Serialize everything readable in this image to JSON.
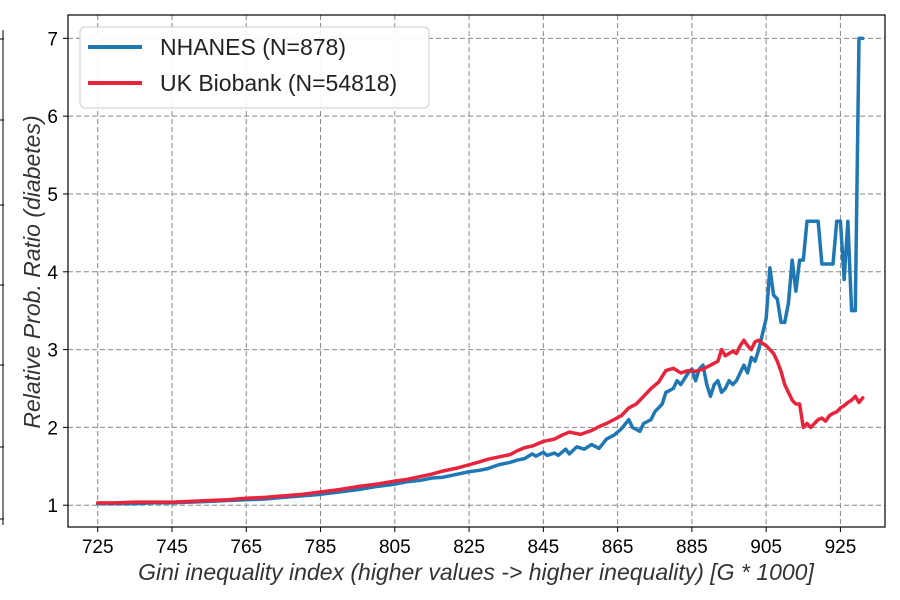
{
  "chart_data": {
    "type": "line",
    "xlabel": "Gini inequality index (higher values -> higher inequality) [G * 1000]",
    "ylabel": "Relative Prob. Ratio (diabetes)",
    "xlim": [
      717,
      937
    ],
    "ylim": [
      0.72,
      7.3
    ],
    "x_ticks": [
      725,
      745,
      765,
      785,
      805,
      825,
      845,
      865,
      885,
      905,
      925
    ],
    "y_ticks": [
      1,
      2,
      3,
      4,
      5,
      6,
      7
    ],
    "grid": true,
    "legend_position": "top-left",
    "series": [
      {
        "name": "NHANES (N=878)",
        "color": "#1f77b4",
        "points": [
          [
            725,
            1.02
          ],
          [
            730,
            1.02
          ],
          [
            735,
            1.02
          ],
          [
            740,
            1.03
          ],
          [
            745,
            1.03
          ],
          [
            750,
            1.04
          ],
          [
            755,
            1.05
          ],
          [
            760,
            1.06
          ],
          [
            765,
            1.07
          ],
          [
            770,
            1.08
          ],
          [
            775,
            1.1
          ],
          [
            780,
            1.12
          ],
          [
            785,
            1.14
          ],
          [
            790,
            1.17
          ],
          [
            795,
            1.2
          ],
          [
            800,
            1.24
          ],
          [
            805,
            1.27
          ],
          [
            808,
            1.3
          ],
          [
            812,
            1.32
          ],
          [
            815,
            1.35
          ],
          [
            818,
            1.36
          ],
          [
            822,
            1.4
          ],
          [
            825,
            1.43
          ],
          [
            828,
            1.45
          ],
          [
            830,
            1.47
          ],
          [
            833,
            1.52
          ],
          [
            836,
            1.55
          ],
          [
            838,
            1.58
          ],
          [
            840,
            1.6
          ],
          [
            842,
            1.66
          ],
          [
            843,
            1.63
          ],
          [
            845,
            1.68
          ],
          [
            846,
            1.64
          ],
          [
            848,
            1.67
          ],
          [
            849,
            1.64
          ],
          [
            851,
            1.72
          ],
          [
            852,
            1.66
          ],
          [
            854,
            1.75
          ],
          [
            856,
            1.72
          ],
          [
            858,
            1.78
          ],
          [
            860,
            1.73
          ],
          [
            862,
            1.85
          ],
          [
            864,
            1.9
          ],
          [
            866,
            1.98
          ],
          [
            868,
            2.1
          ],
          [
            869,
            2.0
          ],
          [
            871,
            1.95
          ],
          [
            872,
            2.05
          ],
          [
            874,
            2.1
          ],
          [
            875,
            2.2
          ],
          [
            877,
            2.3
          ],
          [
            878,
            2.45
          ],
          [
            880,
            2.5
          ],
          [
            881,
            2.6
          ],
          [
            882,
            2.55
          ],
          [
            884,
            2.7
          ],
          [
            885,
            2.75
          ],
          [
            886,
            2.6
          ],
          [
            887,
            2.75
          ],
          [
            888,
            2.8
          ],
          [
            889,
            2.55
          ],
          [
            890,
            2.4
          ],
          [
            891,
            2.55
          ],
          [
            892,
            2.6
          ],
          [
            893,
            2.45
          ],
          [
            894,
            2.5
          ],
          [
            895,
            2.6
          ],
          [
            896,
            2.55
          ],
          [
            897,
            2.6
          ],
          [
            898,
            2.7
          ],
          [
            899,
            2.8
          ],
          [
            900,
            2.7
          ],
          [
            901,
            2.9
          ],
          [
            902,
            2.85
          ],
          [
            903,
            3.0
          ],
          [
            904,
            3.2
          ],
          [
            905,
            3.4
          ],
          [
            906,
            4.05
          ],
          [
            907,
            3.7
          ],
          [
            908,
            3.65
          ],
          [
            909,
            3.35
          ],
          [
            910,
            3.35
          ],
          [
            911,
            3.6
          ],
          [
            912,
            4.15
          ],
          [
            913,
            3.75
          ],
          [
            914,
            4.15
          ],
          [
            915,
            4.15
          ],
          [
            916,
            4.65
          ],
          [
            917,
            4.65
          ],
          [
            918,
            4.65
          ],
          [
            919,
            4.65
          ],
          [
            920,
            4.1
          ],
          [
            921,
            4.1
          ],
          [
            922,
            4.1
          ],
          [
            923,
            4.1
          ],
          [
            924,
            4.65
          ],
          [
            925,
            4.65
          ],
          [
            926,
            3.9
          ],
          [
            927,
            4.65
          ],
          [
            928,
            3.5
          ],
          [
            929,
            3.5
          ],
          [
            930,
            7.0
          ],
          [
            931,
            7.0
          ]
        ]
      },
      {
        "name": "UK Biobank (N=54818)",
        "color": "#e8243d",
        "points": [
          [
            725,
            1.03
          ],
          [
            730,
            1.03
          ],
          [
            735,
            1.04
          ],
          [
            740,
            1.04
          ],
          [
            745,
            1.04
          ],
          [
            750,
            1.05
          ],
          [
            755,
            1.06
          ],
          [
            760,
            1.07
          ],
          [
            765,
            1.09
          ],
          [
            770,
            1.1
          ],
          [
            775,
            1.12
          ],
          [
            780,
            1.14
          ],
          [
            785,
            1.17
          ],
          [
            790,
            1.2
          ],
          [
            795,
            1.24
          ],
          [
            800,
            1.27
          ],
          [
            805,
            1.31
          ],
          [
            808,
            1.33
          ],
          [
            812,
            1.37
          ],
          [
            815,
            1.4
          ],
          [
            818,
            1.44
          ],
          [
            822,
            1.48
          ],
          [
            825,
            1.52
          ],
          [
            828,
            1.56
          ],
          [
            830,
            1.59
          ],
          [
            833,
            1.62
          ],
          [
            836,
            1.65
          ],
          [
            838,
            1.7
          ],
          [
            840,
            1.74
          ],
          [
            842,
            1.76
          ],
          [
            845,
            1.82
          ],
          [
            848,
            1.85
          ],
          [
            850,
            1.9
          ],
          [
            852,
            1.94
          ],
          [
            855,
            1.91
          ],
          [
            858,
            1.96
          ],
          [
            860,
            2.01
          ],
          [
            862,
            2.05
          ],
          [
            864,
            2.1
          ],
          [
            866,
            2.15
          ],
          [
            868,
            2.25
          ],
          [
            870,
            2.3
          ],
          [
            872,
            2.4
          ],
          [
            874,
            2.5
          ],
          [
            876,
            2.58
          ],
          [
            878,
            2.73
          ],
          [
            880,
            2.76
          ],
          [
            882,
            2.7
          ],
          [
            884,
            2.73
          ],
          [
            886,
            2.72
          ],
          [
            888,
            2.75
          ],
          [
            890,
            2.8
          ],
          [
            892,
            2.85
          ],
          [
            893,
            3.0
          ],
          [
            894,
            2.92
          ],
          [
            895,
            2.95
          ],
          [
            896,
            2.98
          ],
          [
            897,
            2.95
          ],
          [
            898,
            3.05
          ],
          [
            899,
            3.12
          ],
          [
            900,
            3.05
          ],
          [
            901,
            3.0
          ],
          [
            902,
            3.1
          ],
          [
            903,
            3.12
          ],
          [
            904,
            3.08
          ],
          [
            905,
            3.05
          ],
          [
            906,
            3.0
          ],
          [
            907,
            2.95
          ],
          [
            908,
            2.85
          ],
          [
            909,
            2.72
          ],
          [
            910,
            2.55
          ],
          [
            911,
            2.45
          ],
          [
            912,
            2.35
          ],
          [
            913,
            2.3
          ],
          [
            914,
            2.3
          ],
          [
            915,
            2.0
          ],
          [
            916,
            2.05
          ],
          [
            917,
            2.0
          ],
          [
            918,
            2.05
          ],
          [
            919,
            2.1
          ],
          [
            920,
            2.12
          ],
          [
            921,
            2.08
          ],
          [
            922,
            2.15
          ],
          [
            923,
            2.18
          ],
          [
            924,
            2.2
          ],
          [
            925,
            2.25
          ],
          [
            926,
            2.28
          ],
          [
            927,
            2.32
          ],
          [
            928,
            2.35
          ],
          [
            929,
            2.4
          ],
          [
            930,
            2.32
          ],
          [
            931,
            2.38
          ]
        ]
      }
    ]
  },
  "colors": {
    "nhanes": "#1f77b4",
    "ukbiobank": "#e8243d",
    "grid": "#888888",
    "frame": "#000000"
  }
}
